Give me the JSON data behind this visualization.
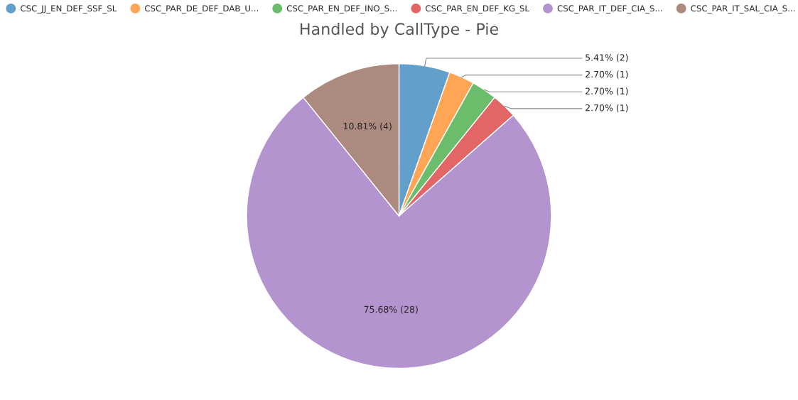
{
  "chart_data": {
    "type": "pie",
    "title": "Handled by CallType - Pie",
    "categories": [
      "CSC_JJ_EN_DEF_SSF_SL",
      "CSC_PAR_DE_DEF_DAB_U...",
      "CSC_PAR_EN_DEF_INO_S...",
      "CSC_PAR_EN_DEF_KG_SL",
      "CSC_PAR_IT_DEF_CIA_S...",
      "CSC_PAR_IT_SAL_CIA_S..."
    ],
    "values": [
      2,
      1,
      1,
      1,
      28,
      4
    ],
    "value_labels": [
      "5.41% (2)",
      "2.70% (1)",
      "2.70% (1)",
      "2.70% (1)",
      "75.68% (28)",
      "10.81% (4)"
    ],
    "colors": [
      "#629fca",
      "#ffa556",
      "#6bbc6b",
      "#e36667",
      "#b394cf",
      "#ad8a7f"
    ],
    "legend": "top"
  }
}
